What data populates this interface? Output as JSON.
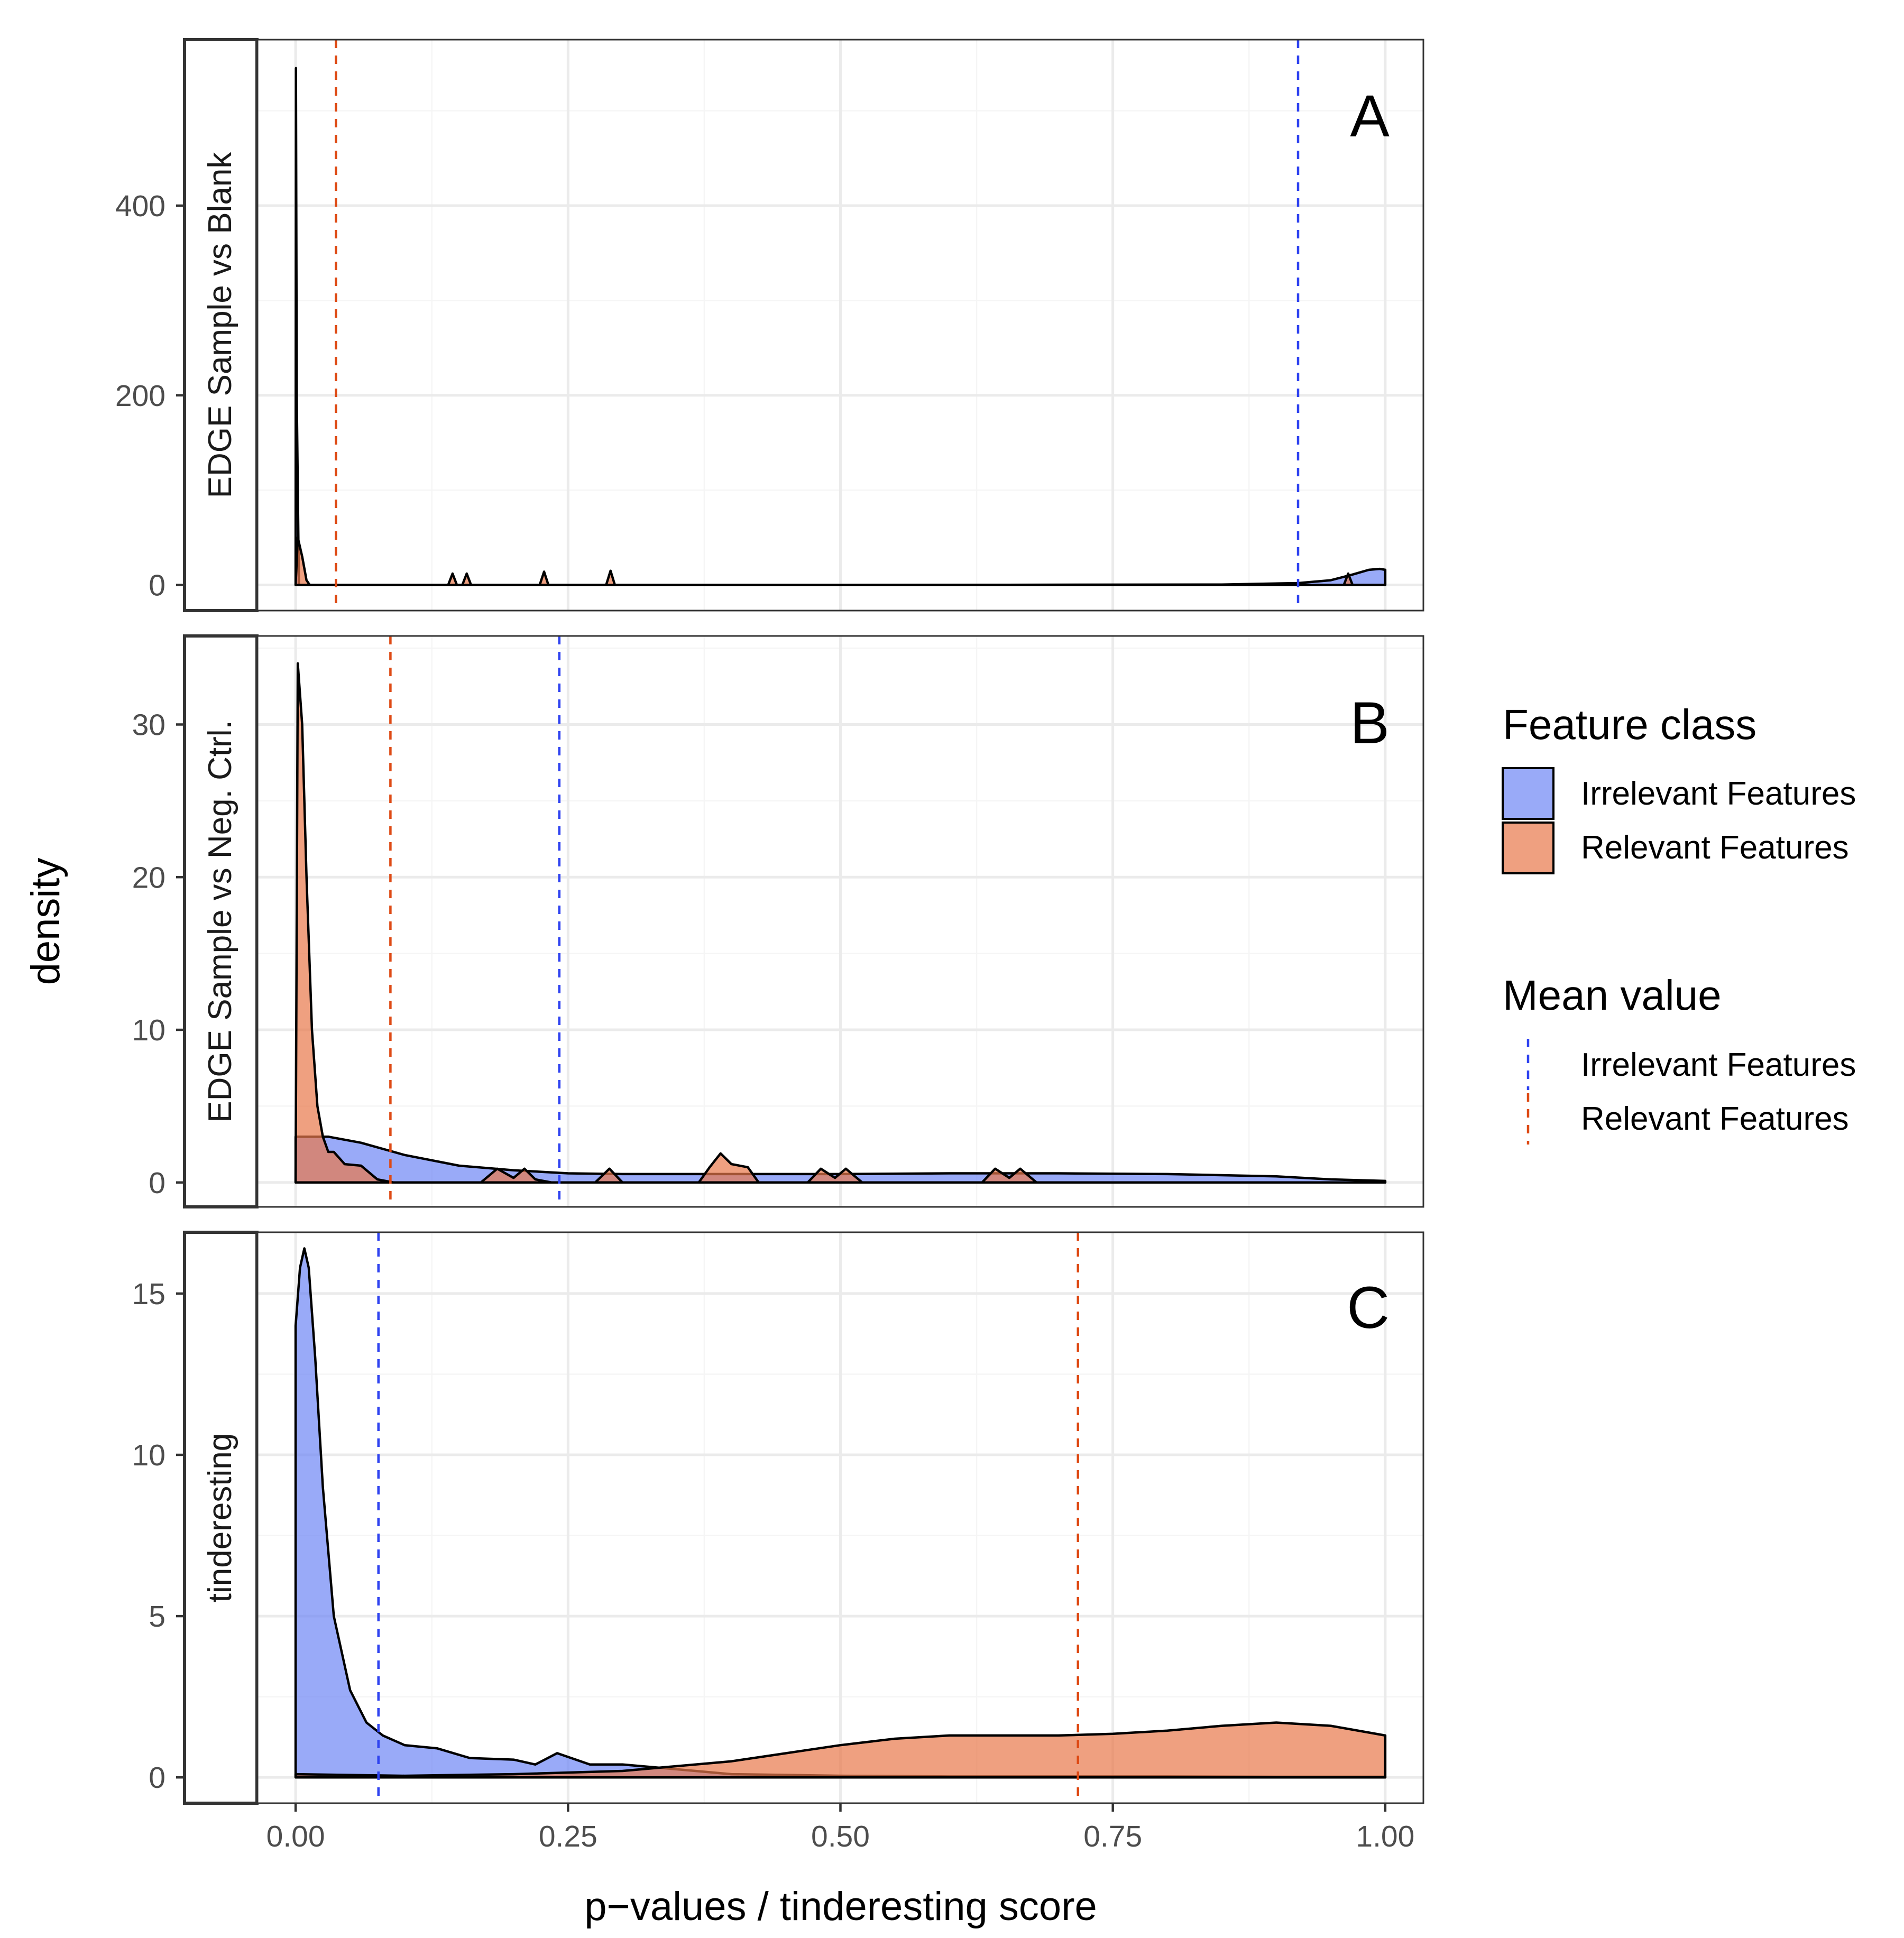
{
  "colors": {
    "irrelevant_fill": "#6e86f5",
    "relevant_fill": "#e8784a",
    "irrelevant_mean_line": "#2f43f0",
    "relevant_mean_line": "#de4a14",
    "grid_major": "#ebebeb",
    "grid_minor": "#f5f5f5",
    "panel_border": "#333333"
  },
  "chart_data": {
    "type": "area",
    "xlabel": "p−values / tinderesting score",
    "ylabel": "density",
    "xlim": [
      -0.035,
      1.035
    ],
    "x_ticks": [
      0,
      0.25,
      0.5,
      0.75,
      1
    ],
    "x_tick_labels": [
      "0.00",
      "0.25",
      "0.50",
      "0.75",
      "1.00"
    ],
    "legend": {
      "fill_title": "Feature class",
      "fill_items": [
        "Irrelevant Features",
        "Relevant Features"
      ],
      "line_title": "Mean value",
      "line_items": [
        "Irrelevant Features",
        "Relevant Features"
      ]
    },
    "panels": [
      {
        "letter": "A",
        "strip": "EDGE Sample vs Blank",
        "ylim": [
          -27,
          575
        ],
        "y_ticks": [
          0,
          200,
          400
        ],
        "y_tick_labels": [
          "0",
          "200",
          "400"
        ],
        "mean_irrelevant": 0.92,
        "mean_relevant": 0.037,
        "series": [
          {
            "name": "Irrelevant Features",
            "x": [
              0,
              0.0003,
              0.001,
              0.003,
              0.5,
              0.85,
              0.92,
              0.95,
              0.97,
              0.985,
              0.995,
              1
            ],
            "y": [
              0,
              545,
              200,
              0,
              0,
              0.5,
              2,
              5,
              11,
              16,
              17,
              16
            ]
          },
          {
            "name": "Relevant Features",
            "x": [
              0,
              0.002,
              0.006,
              0.01,
              0.013,
              0.14,
              0.144,
              0.148,
              0.153,
              0.157,
              0.161,
              0.224,
              0.228,
              0.232,
              0.285,
              0.289,
              0.293,
              0.962,
              0.966,
              0.97,
              1
            ],
            "y": [
              0,
              50,
              30,
              5,
              0,
              0,
              12,
              0,
              0,
              12,
              0,
              0,
              14,
              0,
              0,
              15,
              0,
              0,
              12,
              0,
              0
            ]
          }
        ]
      },
      {
        "letter": "B",
        "strip": "EDGE Sample vs Neg. Ctrl.",
        "ylim": [
          -1.6,
          35.8
        ],
        "y_ticks": [
          0,
          10,
          20,
          30
        ],
        "y_tick_labels": [
          "0",
          "10",
          "20",
          "30"
        ],
        "mean_irrelevant": 0.242,
        "mean_relevant": 0.087,
        "series": [
          {
            "name": "Irrelevant Features",
            "x": [
              0,
              0.005,
              0.03,
              0.06,
              0.1,
              0.15,
              0.2,
              0.25,
              0.3,
              0.4,
              0.5,
              0.6,
              0.7,
              0.8,
              0.9,
              0.95,
              1
            ],
            "y": [
              3,
              3,
              3,
              2.6,
              1.8,
              1.1,
              0.8,
              0.6,
              0.55,
              0.55,
              0.55,
              0.6,
              0.6,
              0.55,
              0.4,
              0.2,
              0.1
            ]
          },
          {
            "name": "Relevant Features",
            "x": [
              0,
              0.002,
              0.006,
              0.01,
              0.015,
              0.02,
              0.025,
              0.03,
              0.035,
              0.045,
              0.06,
              0.075,
              0.09,
              0.17,
              0.185,
              0.2,
              0.21,
              0.22,
              0.235,
              0.275,
              0.288,
              0.3,
              0.37,
              0.38,
              0.39,
              0.4,
              0.415,
              0.425,
              0.47,
              0.482,
              0.495,
              0.505,
              0.52,
              0.63,
              0.642,
              0.655,
              0.665,
              0.68,
              1
            ],
            "y": [
              0,
              34,
              30,
              20,
              10,
              5,
              3,
              2,
              2,
              1.2,
              1.1,
              0.2,
              0,
              0,
              0.9,
              0.3,
              0.9,
              0.2,
              0,
              0,
              0.9,
              0,
              0,
              1,
              1.9,
              1.2,
              1,
              0,
              0,
              0.9,
              0.3,
              0.9,
              0,
              0,
              0.9,
              0.3,
              0.9,
              0,
              0
            ]
          }
        ]
      },
      {
        "letter": "C",
        "strip": "tinderesting",
        "ylim": [
          -0.8,
          16.9
        ],
        "y_ticks": [
          0,
          5,
          10,
          15
        ],
        "y_tick_labels": [
          "0",
          "5",
          "10",
          "15"
        ],
        "mean_irrelevant": 0.076,
        "mean_relevant": 0.718,
        "series": [
          {
            "name": "Irrelevant Features",
            "x": [
              0,
              0.004,
              0.008,
              0.012,
              0.018,
              0.025,
              0.035,
              0.05,
              0.065,
              0.08,
              0.1,
              0.13,
              0.16,
              0.2,
              0.22,
              0.24,
              0.27,
              0.3,
              0.35,
              0.4,
              0.5,
              0.6,
              0.7,
              0.8,
              0.9,
              1
            ],
            "y": [
              14,
              15.8,
              16.4,
              15.8,
              13,
              9,
              5,
              2.7,
              1.7,
              1.3,
              1.0,
              0.9,
              0.6,
              0.55,
              0.4,
              0.75,
              0.4,
              0.4,
              0.25,
              0.1,
              0.05,
              0.03,
              0.03,
              0.03,
              0.02,
              0.02
            ]
          },
          {
            "name": "Relevant Features",
            "x": [
              0,
              0.1,
              0.2,
              0.3,
              0.4,
              0.44,
              0.5,
              0.55,
              0.6,
              0.65,
              0.7,
              0.75,
              0.8,
              0.85,
              0.9,
              0.95,
              1
            ],
            "y": [
              0.1,
              0.05,
              0.1,
              0.2,
              0.5,
              0.7,
              1.0,
              1.2,
              1.3,
              1.3,
              1.3,
              1.35,
              1.45,
              1.6,
              1.7,
              1.6,
              1.3
            ]
          }
        ]
      }
    ]
  }
}
